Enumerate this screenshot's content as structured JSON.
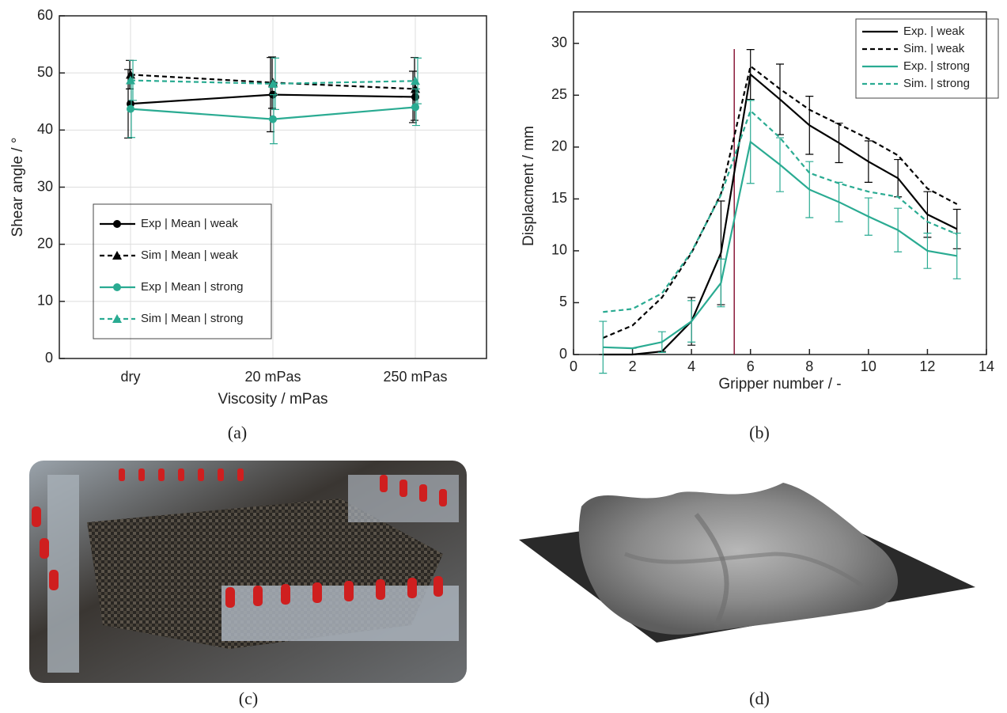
{
  "chart_data": [
    {
      "type": "line",
      "x_label": "Viscosity / mPas",
      "y_label": "Shear angle / °",
      "categories": [
        "dry",
        "20 mPas",
        "250 mPas"
      ],
      "ylim": [
        0,
        60
      ],
      "yticks": [
        0,
        10,
        20,
        30,
        40,
        50,
        60
      ],
      "grid": true,
      "legend": "lower-left",
      "caption": "(a)",
      "series": [
        {
          "name": "Exp | Mean | weak",
          "color": "#000000",
          "line_style": "solid",
          "marker": "circle",
          "values": [
            44.6,
            46.2,
            45.8
          ],
          "errors": [
            6,
            6.5,
            4.5
          ]
        },
        {
          "name": "Sim | Mean | weak",
          "color": "#000000",
          "line_style": "dashed",
          "marker": "triangle",
          "values": [
            49.7,
            48.3,
            47.2
          ],
          "errors": [
            2.5,
            4.5,
            5.5
          ]
        },
        {
          "name": "Exp | Mean | strong",
          "color": "#2aab92",
          "line_style": "solid",
          "marker": "circle",
          "values": [
            43.7,
            41.9,
            44.0
          ],
          "errors": [
            5,
            4.3,
            3.2
          ]
        },
        {
          "name": "Sim | Mean | strong",
          "color": "#2aab92",
          "line_style": "dashed",
          "marker": "triangle",
          "values": [
            48.7,
            48.1,
            48.6
          ],
          "errors": [
            3.5,
            4.5,
            4
          ]
        }
      ]
    },
    {
      "type": "line",
      "x_label": "Gripper number / -",
      "y_label": "Displacment / mm",
      "x": [
        1,
        2,
        3,
        4,
        5,
        6,
        7,
        8,
        9,
        10,
        11,
        12,
        13
      ],
      "xlim": [
        0,
        14
      ],
      "xticks": [
        0,
        2,
        4,
        6,
        8,
        10,
        12,
        14
      ],
      "ylim": [
        0,
        32.5
      ],
      "yticks": [
        0,
        5,
        10,
        15,
        20,
        25,
        30
      ],
      "grid": false,
      "legend": "upper-right",
      "reference_line_x": 5.45,
      "reference_line_color": "#8b1a3a",
      "caption": "(b)",
      "series": [
        {
          "name": "Exp. | weak",
          "color": "#000000",
          "line_style": "solid",
          "values": [
            0,
            0,
            0.3,
            3.2,
            9.8,
            27,
            24.6,
            22.1,
            20.4,
            18.6,
            17.0,
            13.5,
            12.1
          ],
          "errors": [
            0,
            0,
            0,
            2.3,
            5,
            2.4,
            3.4,
            2.8,
            1.9,
            2,
            1.8,
            2.2,
            1.9
          ]
        },
        {
          "name": "Sim. | weak",
          "color": "#000000",
          "line_style": "dashed",
          "values": [
            1.6,
            2.8,
            5.5,
            9.8,
            15.5,
            27.8,
            25.6,
            23.6,
            22.2,
            20.8,
            19.2,
            16.0,
            14.5
          ]
        },
        {
          "name": "Exp. | strong",
          "color": "#2aab92",
          "line_style": "solid",
          "values": [
            0.7,
            0.6,
            1.2,
            3.2,
            6.9,
            20.5,
            18.3,
            15.9,
            14.7,
            13.3,
            12.0,
            10.0,
            9.5
          ],
          "errors": [
            2.5,
            0,
            1,
            2,
            2.3,
            4,
            2.6,
            2.7,
            1.9,
            1.8,
            2.1,
            1.7,
            2.2
          ]
        },
        {
          "name": "Sim. | strong",
          "color": "#2aab92",
          "line_style": "dashed",
          "values": [
            4.1,
            4.4,
            5.9,
            9.9,
            15.4,
            23.5,
            20.9,
            17.5,
            16.5,
            15.7,
            15.2,
            12.8,
            11.6
          ]
        }
      ]
    }
  ],
  "panels": [
    {
      "caption": "(c)"
    },
    {
      "caption": "(d)"
    }
  ]
}
